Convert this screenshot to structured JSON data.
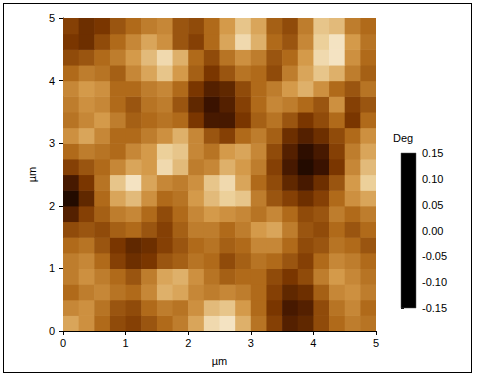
{
  "chart_data": {
    "type": "heatmap",
    "x_label": "µm",
    "y_label": "µm",
    "xlim": [
      0,
      5
    ],
    "ylim": [
      0,
      5
    ],
    "xticks": [
      0,
      1,
      2,
      3,
      4,
      5
    ],
    "yticks": [
      0,
      1,
      2,
      3,
      4,
      5
    ],
    "grid": false,
    "x": [
      0.125,
      0.375,
      0.625,
      0.875,
      1.125,
      1.375,
      1.625,
      1.875,
      2.125,
      2.375,
      2.625,
      2.875,
      3.125,
      3.375,
      3.625,
      3.875,
      4.125,
      4.375,
      4.625,
      4.875
    ],
    "y": [
      0.125,
      0.375,
      0.625,
      0.875,
      1.125,
      1.375,
      1.625,
      1.875,
      2.125,
      2.375,
      2.625,
      2.875,
      3.125,
      3.375,
      3.625,
      3.875,
      4.125,
      4.375,
      4.625,
      4.875
    ],
    "values": [
      [
        0.06,
        0.04,
        0.0,
        -0.03,
        -0.04,
        -0.02,
        0.0,
        0.02,
        0.06,
        0.11,
        0.12,
        0.07,
        0.01,
        -0.04,
        -0.08,
        -0.07,
        -0.03,
        0.0,
        0.02,
        0.01
      ],
      [
        0.03,
        0.04,
        0.01,
        -0.02,
        -0.03,
        0.0,
        0.02,
        0.01,
        0.04,
        0.08,
        0.09,
        0.05,
        0.0,
        -0.05,
        -0.09,
        -0.08,
        -0.03,
        0.01,
        0.03,
        0.0
      ],
      [
        0.0,
        0.02,
        0.03,
        0.01,
        0.0,
        0.03,
        0.07,
        0.06,
        0.03,
        0.02,
        0.03,
        0.02,
        0.0,
        -0.04,
        -0.07,
        -0.06,
        -0.01,
        0.03,
        0.04,
        0.02
      ],
      [
        0.02,
        0.04,
        0.02,
        0.0,
        -0.02,
        0.02,
        0.06,
        0.07,
        0.04,
        0.01,
        -0.01,
        0.0,
        0.0,
        -0.03,
        -0.05,
        -0.03,
        0.02,
        0.05,
        0.03,
        0.01
      ],
      [
        0.02,
        0.03,
        0.0,
        -0.04,
        -0.06,
        -0.05,
        -0.02,
        -0.01,
        0.01,
        0.0,
        -0.03,
        -0.01,
        0.01,
        0.0,
        -0.02,
        -0.04,
        0.0,
        0.03,
        0.02,
        0.0
      ],
      [
        0.0,
        0.01,
        -0.02,
        -0.05,
        -0.07,
        -0.06,
        -0.04,
        -0.02,
        0.0,
        0.01,
        -0.01,
        0.0,
        0.03,
        0.03,
        0.0,
        -0.03,
        -0.02,
        0.01,
        0.0,
        -0.02
      ],
      [
        -0.03,
        -0.02,
        -0.03,
        -0.01,
        0.0,
        -0.02,
        -0.04,
        -0.01,
        0.02,
        0.02,
        0.0,
        0.02,
        0.05,
        0.06,
        0.02,
        -0.02,
        -0.03,
        0.0,
        -0.02,
        0.0
      ],
      [
        -0.08,
        -0.04,
        -0.01,
        0.02,
        0.03,
        0.0,
        -0.03,
        0.0,
        0.03,
        0.05,
        0.04,
        0.03,
        0.01,
        0.03,
        0.0,
        -0.03,
        -0.02,
        0.02,
        0.0,
        0.02
      ],
      [
        -0.12,
        -0.07,
        0.0,
        0.06,
        0.08,
        0.04,
        0.0,
        0.01,
        0.05,
        0.08,
        0.1,
        0.09,
        0.02,
        -0.02,
        -0.04,
        -0.06,
        -0.04,
        0.0,
        0.04,
        0.06
      ],
      [
        -0.09,
        -0.05,
        0.01,
        0.09,
        0.12,
        0.06,
        0.03,
        0.02,
        0.04,
        0.09,
        0.11,
        0.06,
        0.0,
        -0.03,
        -0.07,
        -0.09,
        -0.06,
        -0.02,
        0.05,
        0.1
      ],
      [
        -0.04,
        -0.02,
        0.0,
        0.03,
        0.06,
        0.05,
        0.11,
        0.08,
        0.02,
        0.03,
        0.07,
        0.05,
        0.02,
        -0.04,
        -0.09,
        -0.12,
        -0.1,
        -0.05,
        0.03,
        0.08
      ],
      [
        0.0,
        0.02,
        0.01,
        0.0,
        0.03,
        0.05,
        0.1,
        0.09,
        0.03,
        0.01,
        0.05,
        0.06,
        0.03,
        -0.03,
        -0.08,
        -0.11,
        -0.09,
        -0.04,
        0.02,
        0.06
      ],
      [
        0.04,
        0.06,
        0.03,
        0.0,
        0.0,
        0.02,
        0.04,
        0.07,
        0.03,
        -0.02,
        -0.04,
        0.0,
        0.02,
        -0.01,
        -0.06,
        -0.08,
        -0.06,
        -0.03,
        0.0,
        0.04
      ],
      [
        0.01,
        0.03,
        0.05,
        0.02,
        -0.01,
        0.0,
        0.01,
        0.0,
        -0.05,
        -0.09,
        -0.09,
        -0.05,
        -0.01,
        0.01,
        -0.02,
        -0.05,
        -0.03,
        0.0,
        -0.05,
        0.0
      ],
      [
        0.02,
        0.04,
        0.03,
        0.0,
        -0.02,
        0.01,
        0.02,
        -0.02,
        -0.07,
        -0.1,
        -0.08,
        -0.04,
        0.0,
        0.03,
        0.02,
        0.0,
        -0.02,
        0.04,
        -0.04,
        -0.02
      ],
      [
        0.03,
        0.05,
        0.04,
        0.0,
        0.0,
        0.02,
        0.03,
        0.0,
        -0.05,
        -0.08,
        -0.07,
        -0.03,
        0.0,
        0.02,
        0.05,
        0.07,
        0.04,
        0.0,
        -0.02,
        0.01
      ],
      [
        0.0,
        0.02,
        0.01,
        -0.01,
        0.03,
        0.06,
        0.09,
        0.05,
        -0.01,
        -0.05,
        -0.02,
        0.01,
        0.0,
        -0.03,
        0.02,
        0.06,
        0.09,
        0.07,
        0.02,
        -0.01
      ],
      [
        -0.03,
        -0.02,
        0.0,
        0.02,
        0.05,
        0.08,
        0.11,
        0.07,
        0.0,
        -0.03,
        0.01,
        0.04,
        0.02,
        -0.02,
        0.0,
        0.05,
        0.11,
        0.12,
        0.04,
        0.0
      ],
      [
        -0.05,
        -0.06,
        -0.03,
        0.0,
        0.03,
        0.06,
        0.04,
        -0.02,
        -0.04,
        0.0,
        0.06,
        0.11,
        0.07,
        0.0,
        -0.02,
        0.03,
        0.1,
        0.12,
        0.05,
        0.01
      ],
      [
        -0.04,
        -0.06,
        -0.05,
        -0.02,
        0.0,
        0.02,
        0.03,
        -0.02,
        -0.03,
        0.0,
        0.05,
        0.09,
        0.06,
        -0.01,
        -0.03,
        0.02,
        0.09,
        0.08,
        0.02,
        0.0
      ]
    ],
    "colorbar": {
      "title": "Deg",
      "range": [
        -0.15,
        0.15
      ],
      "ticks": [
        {
          "value": 0.15,
          "label": "0.15"
        },
        {
          "value": 0.1,
          "label": "0.10"
        },
        {
          "value": 0.05,
          "label": "0.05"
        },
        {
          "value": 0,
          "label": "0.00"
        },
        {
          "value": -0.05,
          "label": "-0.05"
        },
        {
          "value": -0.1,
          "label": "-0.10"
        },
        {
          "value": -0.15,
          "label": "-0.15"
        }
      ]
    }
  }
}
